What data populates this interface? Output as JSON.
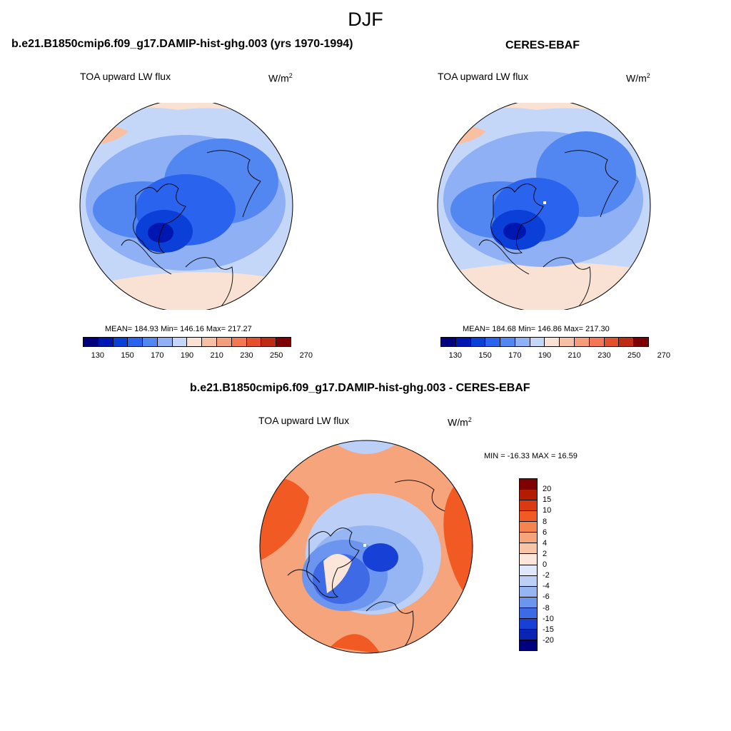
{
  "season": "DJF",
  "panels": {
    "model": {
      "title": "b.e21.B1850cmip6.f09_g17.DAMIP-hist-ghg.003 (yrs 1970-1994)",
      "variable": "TOA upward LW flux",
      "unit_base": "W/m",
      "unit_sup": "2",
      "stats": "MEAN= 184.93  Min= 146.16  Max= 217.27"
    },
    "obs": {
      "title": "CERES-EBAF",
      "variable": "TOA upward LW flux",
      "unit_base": "W/m",
      "unit_sup": "2",
      "stats": "MEAN= 184.68  Min= 146.86  Max= 217.30"
    },
    "diff": {
      "title": "b.e21.B1850cmip6.f09_g17.DAMIP-hist-ghg.003 - CERES-EBAF",
      "variable": "TOA upward LW flux",
      "unit_base": "W/m",
      "unit_sup": "2",
      "stats": "MIN = -16.33 MAX =  16.59"
    }
  },
  "flux_colorbar": {
    "colors": [
      "#00007f",
      "#0016b0",
      "#0a3fd8",
      "#2a63ee",
      "#5287f2",
      "#8fb0f5",
      "#c4d7f9",
      "#f9e2d3",
      "#f8c0a3",
      "#f59d7b",
      "#f27752",
      "#e4502c",
      "#bf2a12",
      "#7f0000"
    ],
    "tick_labels": [
      "130",
      "150",
      "170",
      "190",
      "210",
      "230",
      "250",
      "270"
    ]
  },
  "diff_colorbar": {
    "colors": [
      "#7f0000",
      "#b31c00",
      "#d93a12",
      "#f25a23",
      "#f5844f",
      "#f6a47c",
      "#f8c5a6",
      "#fbe6d9",
      "#dfe9fb",
      "#bcd0f7",
      "#95b5f3",
      "#6c95ef",
      "#3f6ae6",
      "#1740d6",
      "#0a24b3",
      "#00007f"
    ],
    "tick_labels": [
      "20",
      "15",
      "10",
      "8",
      "6",
      "4",
      "2",
      "0",
      "-2",
      "-4",
      "-6",
      "-8",
      "-10",
      "-15",
      "-20"
    ]
  }
}
